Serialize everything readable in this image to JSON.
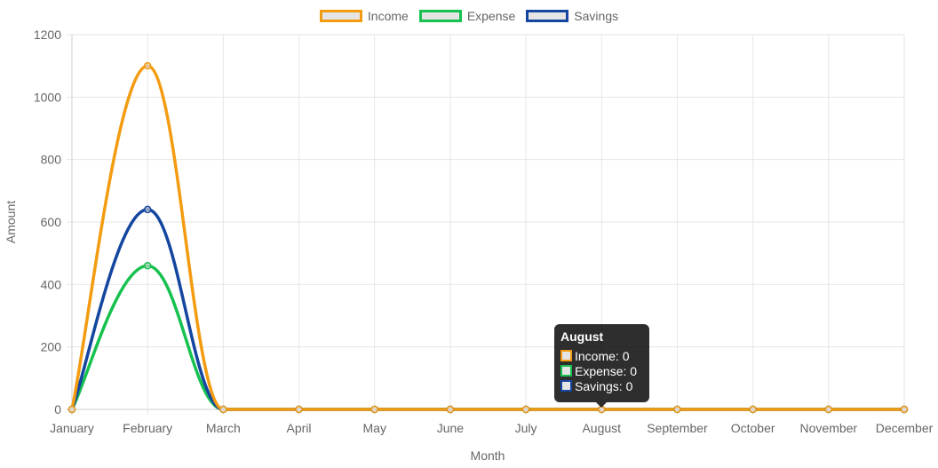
{
  "chart_data": {
    "type": "line",
    "xlabel": "Month",
    "ylabel": "Amount",
    "categories": [
      "January",
      "February",
      "March",
      "April",
      "May",
      "June",
      "July",
      "August",
      "September",
      "October",
      "November",
      "December"
    ],
    "ylim": [
      0,
      1200
    ],
    "yticks": [
      0,
      200,
      400,
      600,
      800,
      1000,
      1200
    ],
    "grid": true,
    "legend_position": "top",
    "series": [
      {
        "name": "Income",
        "color": "#f39c12",
        "values": [
          0,
          1100,
          0,
          0,
          0,
          0,
          0,
          0,
          0,
          0,
          0,
          0
        ]
      },
      {
        "name": "Expense",
        "color": "#16c150",
        "values": [
          0,
          460,
          0,
          0,
          0,
          0,
          0,
          0,
          0,
          0,
          0,
          0
        ]
      },
      {
        "name": "Savings",
        "color": "#1446a0",
        "values": [
          0,
          640,
          0,
          0,
          0,
          0,
          0,
          0,
          0,
          0,
          0,
          0
        ]
      }
    ]
  },
  "legend": {
    "items": [
      {
        "label": "Income",
        "color": "#f39c12"
      },
      {
        "label": "Expense",
        "color": "#16c150"
      },
      {
        "label": "Savings",
        "color": "#1446a0"
      }
    ]
  },
  "tooltip": {
    "title": "August",
    "rows": [
      {
        "text": "Income: 0",
        "color": "#f39c12"
      },
      {
        "text": "Expense: 0",
        "color": "#16c150"
      },
      {
        "text": "Savings: 0",
        "color": "#1446a0"
      }
    ]
  }
}
